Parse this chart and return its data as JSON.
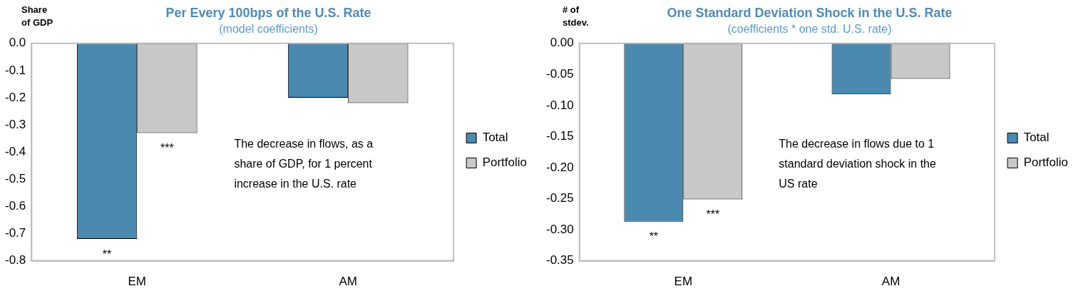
{
  "chart_data": [
    {
      "type": "bar",
      "title": "Per Every 100bps of the U.S. Rate",
      "subtitle": "(model coefficients)",
      "ylabel": "Share of GDP",
      "categories": [
        "EM",
        "AM"
      ],
      "series": [
        {
          "name": "Total",
          "color": "#4a8ab0",
          "values": [
            -0.72,
            -0.2
          ]
        },
        {
          "name": "Portfolio",
          "color": "#c8c8c8",
          "values": [
            -0.33,
            -0.22
          ]
        }
      ],
      "ylim": [
        -0.8,
        0
      ],
      "yticks": [
        {
          "value": 0,
          "label": "0.0"
        },
        {
          "value": -0.1,
          "label": "-0.1"
        },
        {
          "value": -0.2,
          "label": "-0.2"
        },
        {
          "value": -0.3,
          "label": "-0.3"
        },
        {
          "value": -0.4,
          "label": "-0.4"
        },
        {
          "value": -0.5,
          "label": "-0.5"
        },
        {
          "value": -0.6,
          "label": "-0.6"
        },
        {
          "value": -0.7,
          "label": "-0.7"
        },
        {
          "value": -0.8,
          "label": "-0.8"
        }
      ],
      "grid": false,
      "legend": "right",
      "annotations": [
        {
          "text": "**",
          "x": "EM",
          "y": -0.72
        },
        {
          "text": "***",
          "x": "EM",
          "y": -0.33
        },
        "The decrease in flows, as a share of GDP, for 1 percent increase in  the U.S. rate"
      ]
    },
    {
      "type": "bar",
      "title": "One Standard Deviation Shock in the U.S. Rate",
      "subtitle": "(coefficients * one std. U.S. rate)",
      "ylabel": "# of stdev.",
      "categories": [
        "EM",
        "AM"
      ],
      "series": [
        {
          "name": "Total",
          "color": "#4a8ab0",
          "values": [
            -0.287,
            -0.082
          ]
        },
        {
          "name": "Portfolio",
          "color": "#c8c8c8",
          "values": [
            -0.251,
            -0.057
          ]
        }
      ],
      "ylim": [
        -0.35,
        0
      ],
      "yticks": [
        {
          "value": 0,
          "label": "0.00"
        },
        {
          "value": -0.05,
          "label": "-0.05"
        },
        {
          "value": -0.1,
          "label": "-0.10"
        },
        {
          "value": -0.15,
          "label": "-0.15"
        },
        {
          "value": -0.2,
          "label": "-0.20"
        },
        {
          "value": -0.25,
          "label": "-0.25"
        },
        {
          "value": -0.3,
          "label": "-0.30"
        },
        {
          "value": -0.35,
          "label": "-0.35"
        }
      ],
      "grid": false,
      "legend": "right",
      "annotations": [
        {
          "text": "**",
          "x": "EM",
          "y": -0.287
        },
        {
          "text": "***",
          "x": "EM",
          "y": -0.251
        },
        "The decrease in flows due to 1 standard deviation shock in the US rate"
      ]
    }
  ]
}
